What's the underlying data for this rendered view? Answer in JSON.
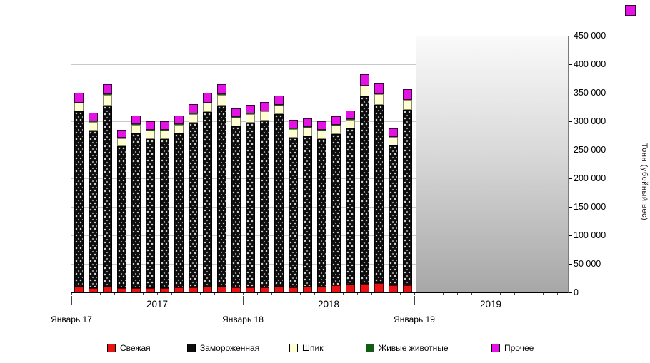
{
  "y_axis": {
    "title": "Тонн (убойный вес)",
    "ticks": [
      "450 000",
      "400 000",
      "350 000",
      "300 000",
      "250 000",
      "200 000",
      "150 000",
      "100 000",
      "50 000",
      "0"
    ]
  },
  "x_axis": {
    "jan_labels": [
      "Январь 17",
      "Январь 18",
      "Январь 19"
    ],
    "year_labels": [
      "2017",
      "2018",
      "2019"
    ]
  },
  "legend": [
    {
      "label": "Свежая",
      "color": "#e81414"
    },
    {
      "label": "Замороженная",
      "color": "#0d0d0d"
    },
    {
      "label": "Шпик",
      "color": "#ffffd2"
    },
    {
      "label": "Живые животные",
      "color": "#135c13"
    },
    {
      "label": "Прочее",
      "color": "#e512e5"
    }
  ],
  "chart_data": {
    "type": "bar",
    "stacked": true,
    "ylabel": "Тонн (убойный вес)",
    "ylim": [
      0,
      450000
    ],
    "grid": true,
    "legend_position": "bottom",
    "x": [
      "2017-01",
      "2017-02",
      "2017-03",
      "2017-04",
      "2017-05",
      "2017-06",
      "2017-07",
      "2017-08",
      "2017-09",
      "2017-10",
      "2017-11",
      "2017-12",
      "2018-01",
      "2018-02",
      "2018-03",
      "2018-04",
      "2018-05",
      "2018-06",
      "2018-07",
      "2018-08",
      "2018-09",
      "2018-10",
      "2018-11",
      "2018-12"
    ],
    "series": [
      {
        "name": "Свежая",
        "color": "#e81414",
        "values": [
          10000,
          8000,
          10000,
          7000,
          8000,
          8000,
          8000,
          9000,
          9000,
          10000,
          10000,
          9000,
          9000,
          9000,
          10000,
          9000,
          10000,
          10000,
          12000,
          14000,
          15000,
          16000,
          13000,
          12000
        ]
      },
      {
        "name": "Замороженная",
        "color": "#0d0d0d",
        "values": [
          307000,
          276000,
          318000,
          249000,
          271000,
          261000,
          261000,
          270000,
          288000,
          306000,
          318000,
          282000,
          289000,
          292000,
          302000,
          262000,
          264000,
          259000,
          266000,
          274000,
          329000,
          313000,
          245000,
          308000
        ]
      },
      {
        "name": "Шпик",
        "color": "#ffffd2",
        "values": [
          15000,
          15000,
          18000,
          14000,
          15000,
          15000,
          15000,
          15000,
          16000,
          16000,
          18000,
          15000,
          15000,
          16000,
          16000,
          15000,
          15000,
          15000,
          15000,
          15000,
          18000,
          18000,
          14000,
          17000
        ]
      },
      {
        "name": "Живые животные",
        "color": "#135c13",
        "values": [
          1000,
          1000,
          1000,
          1000,
          1000,
          1000,
          1000,
          1000,
          1000,
          1000,
          1000,
          1000,
          1000,
          1000,
          1000,
          1000,
          1000,
          1000,
          1000,
          1000,
          1000,
          1000,
          1000,
          1000
        ]
      },
      {
        "name": "Прочее",
        "color": "#e512e5",
        "values": [
          17000,
          15000,
          18000,
          14000,
          15000,
          15000,
          15000,
          15000,
          16000,
          17000,
          18000,
          15000,
          15000,
          16000,
          16000,
          15000,
          15000,
          15000,
          15000,
          15000,
          19000,
          18000,
          14000,
          18000
        ]
      }
    ]
  }
}
